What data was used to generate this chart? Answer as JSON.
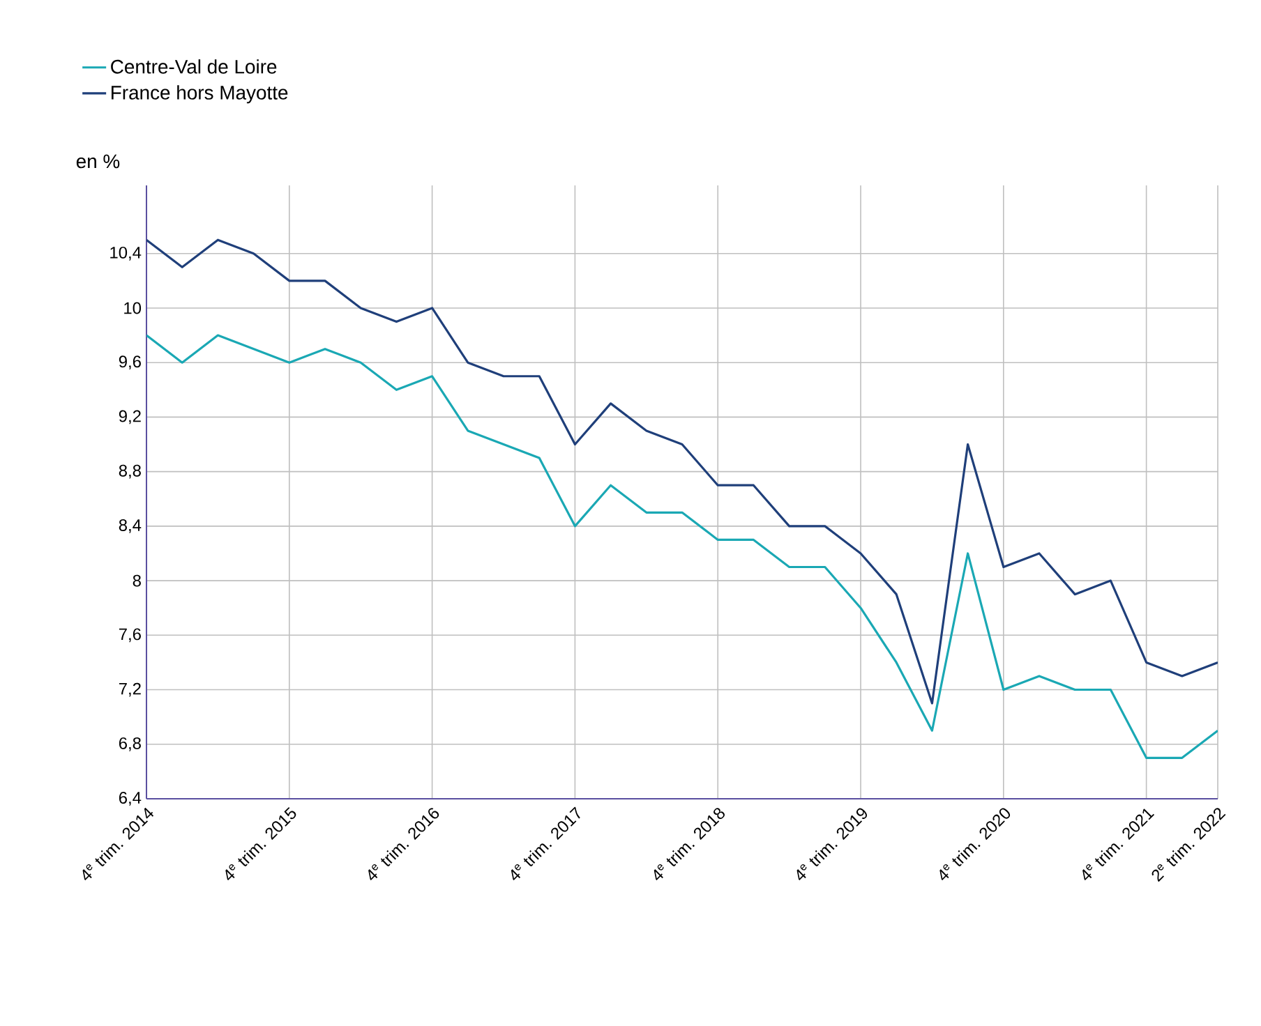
{
  "chart_data": {
    "type": "line",
    "ylabel": "en %",
    "categories": [
      "4$^{e}$ trim. 2014",
      null,
      null,
      null,
      "4$^{e}$ trim. 2015",
      null,
      null,
      null,
      "4$^{e}$ trim. 2016",
      null,
      null,
      null,
      "4$^{e}$ trim. 2017",
      null,
      null,
      null,
      "4$^{e}$ trim. 2018",
      null,
      null,
      null,
      "4$^{e}$ trim. 2019",
      null,
      null,
      null,
      "4$^{e}$ trim. 2020",
      null,
      null,
      null,
      "4$^{e}$ trim. 2021",
      null,
      "2$^{e}$ trim. 2022"
    ],
    "series": [
      {
        "name": "Centre-Val de Loire",
        "color": "#1aa8b4",
        "values": [
          9.8,
          9.6,
          9.8,
          9.7,
          9.6,
          9.7,
          9.6,
          9.4,
          9.5,
          9.1,
          9.0,
          8.9,
          8.4,
          8.7,
          8.5,
          8.5,
          8.3,
          8.3,
          8.1,
          8.1,
          7.8,
          7.4,
          6.9,
          8.2,
          7.2,
          7.3,
          7.2,
          7.2,
          6.7,
          6.7,
          6.9
        ]
      },
      {
        "name": "France hors Mayotte",
        "color": "#1f3f7a",
        "values": [
          10.5,
          10.3,
          10.5,
          10.4,
          10.2,
          10.2,
          10.0,
          9.9,
          10.0,
          9.6,
          9.5,
          9.5,
          9.0,
          9.3,
          9.1,
          9.0,
          8.7,
          8.7,
          8.4,
          8.4,
          8.2,
          7.9,
          7.1,
          9.0,
          8.1,
          8.2,
          7.9,
          8.0,
          7.4,
          7.3,
          7.4
        ]
      }
    ],
    "ylim": [
      6.4,
      10.9
    ],
    "yticks": [
      {
        "value": 6.4,
        "label": "6,4"
      },
      {
        "value": 6.8,
        "label": "6,8"
      },
      {
        "value": 7.2,
        "label": "7,2"
      },
      {
        "value": 7.6,
        "label": "7,6"
      },
      {
        "value": 8,
        "label": "8"
      },
      {
        "value": 8.4,
        "label": "8,4"
      },
      {
        "value": 8.8,
        "label": "8,8"
      },
      {
        "value": 9.2,
        "label": "9,2"
      },
      {
        "value": 9.6,
        "label": "9,6"
      },
      {
        "value": 10,
        "label": "10"
      },
      {
        "value": 10.4,
        "label": "10,4"
      }
    ],
    "grid": true,
    "legend": "top left"
  }
}
